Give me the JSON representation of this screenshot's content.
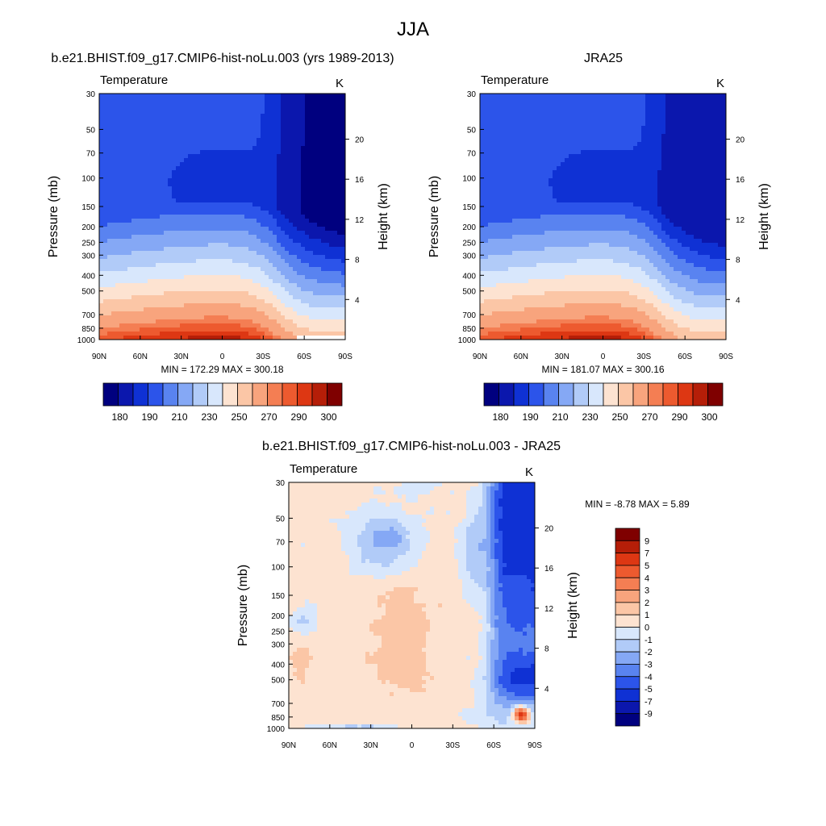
{
  "figure": {
    "title": "JJA"
  },
  "colors": {
    "abs_scale": [
      "#00007f",
      "#0b17ad",
      "#0f31d4",
      "#2c54ea",
      "#5983f0",
      "#85a8f5",
      "#b1cbf8",
      "#d8e7fc",
      "#fde3d1",
      "#fbc6a6",
      "#f8a47d",
      "#f47e53",
      "#ed5a2f",
      "#dd3713",
      "#b51e08",
      "#7f0000"
    ],
    "diff_scale": [
      "#00007f",
      "#0b17ad",
      "#0f31d4",
      "#2c54ea",
      "#5983f0",
      "#85a8f5",
      "#b1cbf8",
      "#d8e7fc",
      "#fde3d1",
      "#fbc6a6",
      "#f8a47d",
      "#f47e53",
      "#ed5a2f",
      "#dd3713",
      "#b51e08",
      "#7f0000"
    ],
    "missing": "#ffffff",
    "outline": "#000000"
  },
  "chart_data": [
    {
      "type": "heatmap",
      "title": "b.e21.BHIST.f09_g17.CMIP6-hist-noLu.003 (yrs 1989-2013)",
      "left_label": "Temperature",
      "right_label": "K",
      "ylabel": "Pressure (mb)",
      "y2label": "Height (km)",
      "xticks": [
        "90N",
        "60N",
        "30N",
        "0",
        "30S",
        "60S",
        "90S"
      ],
      "xlim": [
        90,
        -90
      ],
      "yticks": [
        "30",
        "50",
        "70",
        "100",
        "150",
        "200",
        "250",
        "300",
        "400",
        "500",
        "700",
        "850",
        "1000"
      ],
      "ylim": [
        1000,
        30
      ],
      "y_scale": "log",
      "y2ticks": [
        "4",
        "8",
        "12",
        "16",
        "20"
      ],
      "stats": "MIN = 172.29  MAX = 300.18",
      "min": 172.29,
      "max": 300.18,
      "colorbar": {
        "orientation": "horizontal",
        "labels": [
          "180",
          "190",
          "210",
          "230",
          "250",
          "270",
          "290",
          "300"
        ]
      }
    },
    {
      "type": "heatmap",
      "title": "JRA25",
      "left_label": "Temperature",
      "right_label": "K",
      "ylabel": "Pressure (mb)",
      "y2label": "Height (km)",
      "xticks": [
        "90N",
        "60N",
        "30N",
        "0",
        "30S",
        "60S",
        "90S"
      ],
      "xlim": [
        90,
        -90
      ],
      "yticks": [
        "30",
        "50",
        "70",
        "100",
        "150",
        "200",
        "250",
        "300",
        "400",
        "500",
        "700",
        "850",
        "1000"
      ],
      "ylim": [
        1000,
        30
      ],
      "y_scale": "log",
      "y2ticks": [
        "4",
        "8",
        "12",
        "16",
        "20"
      ],
      "stats": "MIN = 181.07  MAX = 300.16",
      "min": 181.07,
      "max": 300.16,
      "colorbar": {
        "orientation": "horizontal",
        "labels": [
          "180",
          "190",
          "210",
          "230",
          "250",
          "270",
          "290",
          "300"
        ]
      }
    },
    {
      "type": "heatmap",
      "title": "b.e21.BHIST.f09_g17.CMIP6-hist-noLu.003 - JRA25",
      "left_label": "Temperature",
      "right_label": "K",
      "ylabel": "Pressure (mb)",
      "y2label": "Height (km)",
      "xticks": [
        "90N",
        "60N",
        "30N",
        "0",
        "30S",
        "60S",
        "90S"
      ],
      "xlim": [
        90,
        -90
      ],
      "yticks": [
        "30",
        "50",
        "70",
        "100",
        "150",
        "200",
        "250",
        "300",
        "400",
        "500",
        "700",
        "850",
        "1000"
      ],
      "ylim": [
        1000,
        30
      ],
      "y_scale": "log",
      "y2ticks": [
        "4",
        "8",
        "12",
        "16",
        "20"
      ],
      "stats": "MIN =  -8.78  MAX =   5.89",
      "min": -8.78,
      "max": 5.89,
      "colorbar": {
        "orientation": "vertical",
        "labels": [
          "9",
          "7",
          "5",
          "4",
          "3",
          "2",
          "1",
          "0",
          "-1",
          "-2",
          "-3",
          "-4",
          "-5",
          "-7",
          "-9"
        ]
      }
    }
  ]
}
